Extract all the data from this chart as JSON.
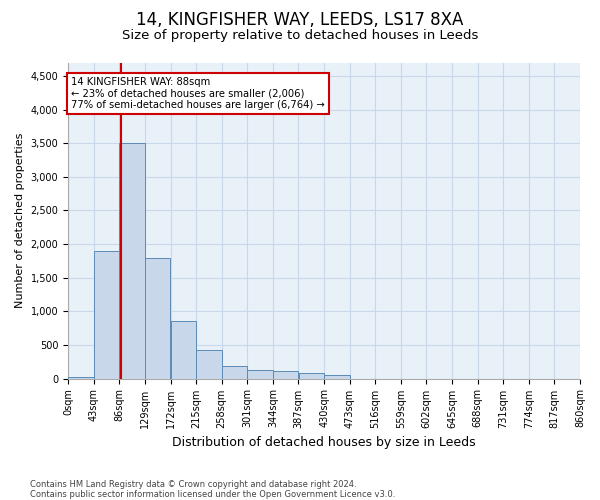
{
  "title": "14, KINGFISHER WAY, LEEDS, LS17 8XA",
  "subtitle": "Size of property relative to detached houses in Leeds",
  "xlabel": "Distribution of detached houses by size in Leeds",
  "ylabel": "Number of detached properties",
  "footer_line1": "Contains HM Land Registry data © Crown copyright and database right 2024.",
  "footer_line2": "Contains public sector information licensed under the Open Government Licence v3.0.",
  "bar_values": [
    30,
    1900,
    3500,
    1800,
    850,
    420,
    190,
    130,
    110,
    90,
    60,
    0,
    0,
    0,
    0,
    0,
    0,
    0,
    0,
    0
  ],
  "bin_edges": [
    0,
    43,
    86,
    129,
    172,
    215,
    258,
    301,
    344,
    387,
    430,
    473,
    516,
    559,
    602,
    645,
    688,
    731,
    774,
    817,
    860
  ],
  "bar_color": "#c8d8ea",
  "bar_edgecolor": "#5a8ab5",
  "property_size": 88,
  "red_line_color": "#cc0000",
  "annotation_line1": "14 KINGFISHER WAY: 88sqm",
  "annotation_line2": "← 23% of detached houses are smaller (2,006)",
  "annotation_line3": "77% of semi-detached houses are larger (6,764) →",
  "annotation_box_color": "#ffffff",
  "annotation_border_color": "#cc0000",
  "ylim_max": 4700,
  "yticks": [
    0,
    500,
    1000,
    1500,
    2000,
    2500,
    3000,
    3500,
    4000,
    4500
  ],
  "grid_color": "#c8d8ea",
  "bg_plot": "#e8f0f8",
  "bg_fig": "#ffffff",
  "title_fontsize": 12,
  "subtitle_fontsize": 9.5,
  "xlabel_fontsize": 9,
  "ylabel_fontsize": 8,
  "tick_fontsize": 7,
  "footer_fontsize": 6
}
